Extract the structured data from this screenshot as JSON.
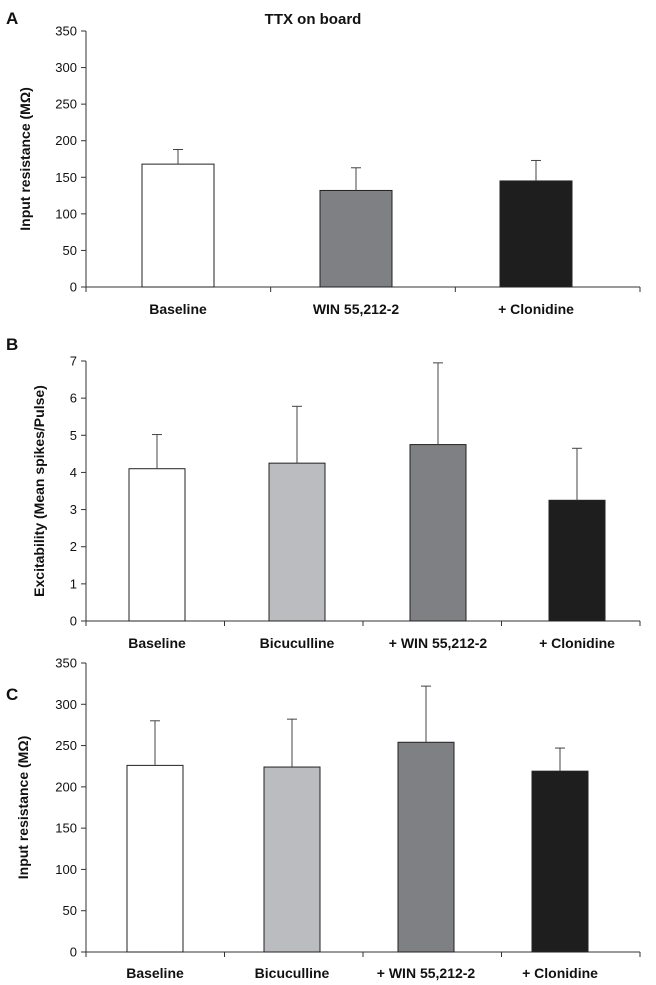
{
  "chart_data": [
    {
      "panel": "A",
      "type": "bar",
      "title": "TTX on board",
      "ylabel": "Input resistance (MΩ)",
      "ylim": [
        0,
        350
      ],
      "yticks": [
        0,
        50,
        100,
        150,
        200,
        250,
        300,
        350
      ],
      "categories": [
        "Baseline",
        "WIN 55,212-2",
        "+ Clonidine"
      ],
      "values": [
        168,
        132,
        145
      ],
      "errors": [
        20,
        31,
        28
      ],
      "colors": [
        "#ffffff",
        "#7f8083",
        "#1f1e1f"
      ]
    },
    {
      "panel": "B",
      "type": "bar",
      "title": "",
      "ylabel": "Excitability (Mean spikes/Pulse)",
      "ylim": [
        0,
        7
      ],
      "yticks": [
        0,
        1,
        2,
        3,
        4,
        5,
        6,
        7
      ],
      "categories": [
        "Baseline",
        "Bicuculline",
        "+ WIN 55,212-2",
        "+ Clonidine"
      ],
      "values": [
        4.1,
        4.25,
        4.75,
        3.25
      ],
      "errors": [
        0.92,
        1.53,
        2.2,
        1.4
      ],
      "colors": [
        "#ffffff",
        "#bbbcbf",
        "#7f8083",
        "#1f1e1f"
      ]
    },
    {
      "panel": "C",
      "type": "bar",
      "title": "",
      "ylabel": "Input resistance (MΩ)",
      "ylim": [
        0,
        350
      ],
      "yticks": [
        0,
        50,
        100,
        150,
        200,
        250,
        300,
        350
      ],
      "categories": [
        "Baseline",
        "Bicuculline",
        "+ WIN 55,212-2",
        "+ Clonidine"
      ],
      "values": [
        226,
        224,
        254,
        219
      ],
      "errors": [
        54,
        58,
        68,
        28
      ],
      "colors": [
        "#ffffff",
        "#bbbcbf",
        "#7f8083",
        "#1f1e1f"
      ]
    }
  ]
}
